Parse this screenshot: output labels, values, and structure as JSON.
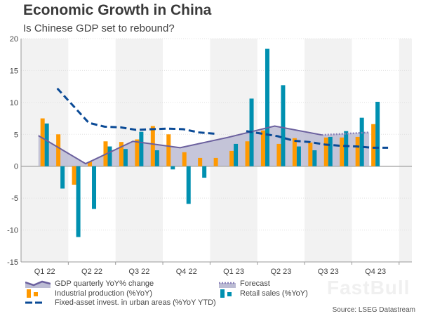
{
  "title": "Economic Growth in China",
  "subtitle": "Is Chinese GDP set to rebound?",
  "source": "Source: LSEG Datastream",
  "watermark": "FastBull",
  "colors": {
    "gdp_line": "#6b609e",
    "gdp_fill": "#bcbcd4",
    "forecast": "#8a80b8",
    "industrial": "#ff9900",
    "retail": "#0090b0",
    "fai": "#0a4a96",
    "band": "#f2f2f2"
  },
  "chart_data": {
    "type": "bar+line",
    "title": "Economic Growth in China",
    "subtitle": "Is Chinese GDP set to rebound?",
    "ylim": [
      -15,
      20
    ],
    "yticks": [
      -15,
      -10,
      -5,
      0,
      5,
      10,
      15,
      20
    ],
    "xticks": [
      "Q1 22",
      "Q2 22",
      "Q3 22",
      "Q4 22",
      "Q1 23",
      "Q2 23",
      "Q3 23",
      "Q4 23"
    ],
    "grid": true,
    "legend_placement": "bottom",
    "series": [
      {
        "name": "GDP quarterly YoY% change",
        "kind": "area-line",
        "quarters": [
          "Q1 22",
          "Q2 22",
          "Q3 22",
          "Q4 22",
          "Q1 23",
          "Q2 23",
          "Q3 23"
        ],
        "values": [
          4.8,
          0.4,
          3.9,
          2.9,
          4.5,
          6.3,
          4.9
        ]
      },
      {
        "name": "Forecast",
        "kind": "dotted-line",
        "quarters": [
          "Q3 23",
          "Q4 23"
        ],
        "values": [
          4.9,
          5.3
        ]
      },
      {
        "name": "Industrial production (%YoY)",
        "kind": "bar",
        "months": [
          "2022-02",
          "2022-03",
          "2022-04",
          "2022-05",
          "2022-06",
          "2022-07",
          "2022-08",
          "2022-09",
          "2022-10",
          "2022-11",
          "2022-12",
          "2023-01",
          "2023-02",
          "2023-03",
          "2023-04",
          "2023-05",
          "2023-06",
          "2023-07",
          "2023-08",
          "2023-09",
          "2023-10",
          "2023-11"
        ],
        "values": [
          7.5,
          5.0,
          -2.9,
          0.7,
          3.9,
          3.8,
          4.2,
          6.3,
          5.0,
          2.2,
          1.3,
          1.3,
          2.4,
          3.9,
          5.6,
          3.5,
          4.4,
          3.7,
          4.5,
          4.5,
          4.6,
          6.6
        ]
      },
      {
        "name": "Retail sales (%YoY)",
        "kind": "bar",
        "months": [
          "2022-02",
          "2022-03",
          "2022-04",
          "2022-05",
          "2022-06",
          "2022-07",
          "2022-08",
          "2022-09",
          "2022-10",
          "2022-11",
          "2022-12",
          "2023-01",
          "2023-02",
          "2023-03",
          "2023-04",
          "2023-05",
          "2023-06",
          "2023-07",
          "2023-08",
          "2023-09",
          "2023-10",
          "2023-11"
        ],
        "values": [
          6.7,
          -3.5,
          -11.1,
          -6.7,
          3.1,
          2.7,
          5.4,
          2.5,
          -0.5,
          -5.9,
          -1.8,
          null,
          3.5,
          10.6,
          18.4,
          12.7,
          3.1,
          2.5,
          4.6,
          5.5,
          7.6,
          10.1
        ]
      },
      {
        "name": "Fixed-asset invest. in urban areas (%YoY YTD)",
        "kind": "dashed-line",
        "segments": [
          {
            "months": [
              "2022-02",
              "2022-04",
              "2022-05",
              "2022-06",
              "2022-07",
              "2022-08",
              "2022-09",
              "2022-10",
              "2022-11",
              "2022-12"
            ],
            "values": [
              12.2,
              6.8,
              6.2,
              6.1,
              5.7,
              5.8,
              5.9,
              5.8,
              5.3,
              5.1
            ]
          },
          {
            "months": [
              "2023-02",
              "2023-03",
              "2023-04",
              "2023-05",
              "2023-06",
              "2023-07",
              "2023-08",
              "2023-09",
              "2023-10",
              "2023-11"
            ],
            "values": [
              5.5,
              5.1,
              4.7,
              4.0,
              3.8,
              3.4,
              3.2,
              3.1,
              2.9,
              2.9
            ]
          }
        ]
      }
    ]
  }
}
